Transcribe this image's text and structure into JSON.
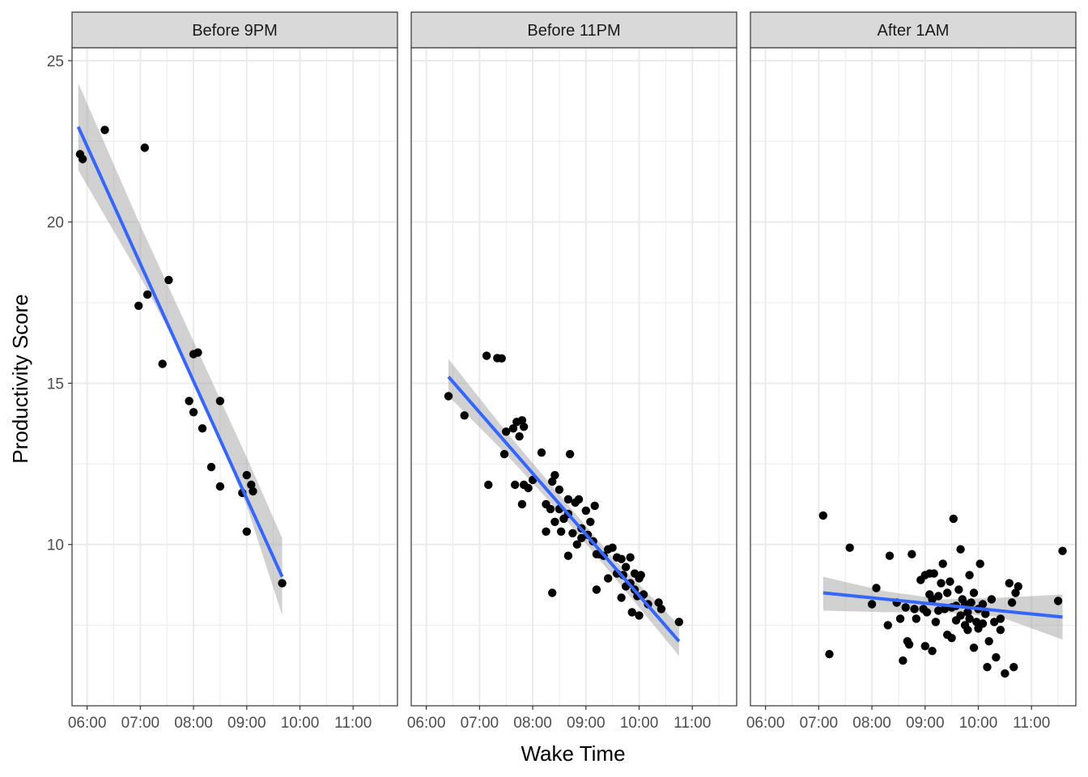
{
  "chart_data": {
    "type": "scatter",
    "xlabel": "Wake Time",
    "ylabel": "Productivity Score",
    "x_ticks": [
      "06:00",
      "07:00",
      "08:00",
      "09:00",
      "10:00",
      "11:00"
    ],
    "y_ticks": [
      10,
      15,
      20,
      25
    ],
    "xlim": [
      "05:43",
      "11:50"
    ],
    "ylim": [
      5.0,
      25.4
    ],
    "grid": true,
    "colors": {
      "points": "#000000",
      "fit_line": "#3366ff",
      "ribbon": "#999999",
      "strip_bg": "#d9d9d9",
      "grid": "#ebebeb"
    },
    "panels": [
      {
        "label": "Before 9PM",
        "fit": {
          "x": [
            "05:50",
            "09:40"
          ],
          "y": [
            22.95,
            9.0
          ]
        },
        "ribbon": {
          "x": [
            "05:50",
            "07:00",
            "08:00",
            "09:00",
            "09:40"
          ],
          "upper": [
            24.3,
            19.9,
            16.3,
            12.7,
            10.2
          ],
          "lower": [
            21.6,
            18.3,
            15.2,
            11.2,
            7.8
          ]
        },
        "points": [
          [
            "05:52",
            22.1
          ],
          [
            "05:55",
            21.95
          ],
          [
            "06:20",
            22.85
          ],
          [
            "07:05",
            22.3
          ],
          [
            "07:08",
            17.75
          ],
          [
            "06:58",
            17.4
          ],
          [
            "07:32",
            18.2
          ],
          [
            "07:25",
            15.6
          ],
          [
            "08:00",
            15.9
          ],
          [
            "08:05",
            15.95
          ],
          [
            "07:55",
            14.45
          ],
          [
            "08:00",
            14.1
          ],
          [
            "08:10",
            13.6
          ],
          [
            "08:30",
            14.45
          ],
          [
            "08:20",
            12.4
          ],
          [
            "08:30",
            11.8
          ],
          [
            "09:00",
            12.15
          ],
          [
            "09:05",
            11.85
          ],
          [
            "08:55",
            11.6
          ],
          [
            "09:07",
            11.65
          ],
          [
            "09:00",
            10.4
          ],
          [
            "09:40",
            8.8
          ]
        ]
      },
      {
        "label": "Before 11PM",
        "fit": {
          "x": [
            "06:25",
            "10:45"
          ],
          "y": [
            15.2,
            7.0
          ]
        },
        "ribbon": {
          "x": [
            "06:25",
            "07:30",
            "08:30",
            "09:30",
            "10:45"
          ],
          "upper": [
            15.75,
            13.5,
            11.55,
            9.6,
            7.5
          ],
          "lower": [
            14.6,
            12.8,
            11.0,
            9.05,
            6.55
          ]
        },
        "points": [
          [
            "06:25",
            14.6
          ],
          [
            "06:43",
            14.0
          ],
          [
            "07:08",
            15.85
          ],
          [
            "07:20",
            15.78
          ],
          [
            "07:25",
            15.77
          ],
          [
            "07:10",
            11.85
          ],
          [
            "07:28",
            12.8
          ],
          [
            "07:30",
            13.5
          ],
          [
            "07:38",
            13.6
          ],
          [
            "07:42",
            13.8
          ],
          [
            "07:48",
            13.85
          ],
          [
            "07:45",
            13.35
          ],
          [
            "07:50",
            13.65
          ],
          [
            "07:40",
            11.85
          ],
          [
            "07:50",
            11.85
          ],
          [
            "07:55",
            11.75
          ],
          [
            "08:00",
            12.0
          ],
          [
            "07:48",
            11.25
          ],
          [
            "08:10",
            12.85
          ],
          [
            "08:15",
            11.25
          ],
          [
            "08:20",
            11.1
          ],
          [
            "08:22",
            11.95
          ],
          [
            "08:25",
            12.15
          ],
          [
            "08:30",
            11.7
          ],
          [
            "08:30",
            11.1
          ],
          [
            "08:35",
            10.8
          ],
          [
            "08:40",
            10.95
          ],
          [
            "08:25",
            10.7
          ],
          [
            "08:32",
            10.4
          ],
          [
            "08:15",
            10.4
          ],
          [
            "08:40",
            11.4
          ],
          [
            "08:48",
            11.3
          ],
          [
            "08:52",
            11.4
          ],
          [
            "08:45",
            10.35
          ],
          [
            "08:50",
            10.0
          ],
          [
            "08:55",
            10.5
          ],
          [
            "09:00",
            11.05
          ],
          [
            "09:05",
            10.7
          ],
          [
            "09:10",
            11.2
          ],
          [
            "09:02",
            10.3
          ],
          [
            "09:08",
            10.1
          ],
          [
            "09:12",
            9.7
          ],
          [
            "09:20",
            9.65
          ],
          [
            "09:25",
            9.85
          ],
          [
            "09:30",
            9.9
          ],
          [
            "09:35",
            9.6
          ],
          [
            "09:40",
            9.55
          ],
          [
            "09:45",
            9.3
          ],
          [
            "09:50",
            9.6
          ],
          [
            "09:55",
            9.1
          ],
          [
            "10:00",
            8.95
          ],
          [
            "10:02",
            9.05
          ],
          [
            "09:42",
            9.05
          ],
          [
            "09:50",
            8.8
          ],
          [
            "09:40",
            8.35
          ],
          [
            "09:25",
            8.95
          ],
          [
            "09:12",
            8.6
          ],
          [
            "08:40",
            9.65
          ],
          [
            "09:55",
            8.6
          ],
          [
            "10:05",
            8.45
          ],
          [
            "09:52",
            7.9
          ],
          [
            "10:00",
            7.8
          ],
          [
            "10:22",
            8.2
          ],
          [
            "10:25",
            8.0
          ],
          [
            "10:45",
            7.6
          ],
          [
            "08:22",
            8.5
          ],
          [
            "08:42",
            12.8
          ],
          [
            "08:55",
            10.2
          ],
          [
            "09:15",
            9.7
          ],
          [
            "09:35",
            9.1
          ],
          [
            "09:45",
            8.7
          ],
          [
            "09:58",
            8.4
          ],
          [
            "10:10",
            8.15
          ]
        ]
      },
      {
        "label": "After 1AM",
        "fit": {
          "x": [
            "07:05",
            "11:35"
          ],
          "y": [
            8.5,
            7.75
          ]
        },
        "ribbon": {
          "x": [
            "07:05",
            "08:15",
            "09:20",
            "10:25",
            "11:35"
          ],
          "upper": [
            9.0,
            8.55,
            8.3,
            8.35,
            8.45
          ],
          "lower": [
            7.95,
            7.9,
            7.9,
            7.75,
            7.05
          ]
        },
        "points": [
          [
            "07:05",
            10.9
          ],
          [
            "07:12",
            6.6
          ],
          [
            "07:35",
            9.9
          ],
          [
            "08:00",
            8.15
          ],
          [
            "08:05",
            8.65
          ],
          [
            "08:18",
            7.5
          ],
          [
            "08:20",
            9.65
          ],
          [
            "08:28",
            8.2
          ],
          [
            "08:32",
            7.7
          ],
          [
            "08:35",
            6.4
          ],
          [
            "08:40",
            7.0
          ],
          [
            "08:45",
            9.7
          ],
          [
            "08:48",
            8.0
          ],
          [
            "08:55",
            8.9
          ],
          [
            "09:00",
            9.05
          ],
          [
            "09:05",
            9.1
          ],
          [
            "09:10",
            9.1
          ],
          [
            "08:58",
            8.0
          ],
          [
            "09:02",
            7.9
          ],
          [
            "09:08",
            8.3
          ],
          [
            "09:12",
            7.6
          ],
          [
            "09:15",
            8.4
          ],
          [
            "09:18",
            8.8
          ],
          [
            "09:20",
            9.4
          ],
          [
            "09:22",
            8.0
          ],
          [
            "09:25",
            7.2
          ],
          [
            "09:28",
            8.85
          ],
          [
            "09:30",
            7.1
          ],
          [
            "09:32",
            10.8
          ],
          [
            "09:35",
            8.1
          ],
          [
            "09:38",
            8.6
          ],
          [
            "09:40",
            9.85
          ],
          [
            "09:42",
            8.3
          ],
          [
            "09:45",
            7.5
          ],
          [
            "09:48",
            7.9
          ],
          [
            "09:50",
            9.05
          ],
          [
            "09:52",
            8.2
          ],
          [
            "09:55",
            6.8
          ],
          [
            "09:58",
            7.6
          ],
          [
            "10:00",
            8.0
          ],
          [
            "10:02",
            9.4
          ],
          [
            "10:05",
            8.15
          ],
          [
            "10:08",
            7.85
          ],
          [
            "10:10",
            6.2
          ],
          [
            "10:12",
            7.0
          ],
          [
            "10:15",
            8.3
          ],
          [
            "10:18",
            7.6
          ],
          [
            "10:20",
            6.5
          ],
          [
            "10:25",
            7.7
          ],
          [
            "10:30",
            6.0
          ],
          [
            "10:35",
            8.8
          ],
          [
            "10:38",
            8.2
          ],
          [
            "10:40",
            6.2
          ],
          [
            "10:42",
            8.5
          ],
          [
            "10:45",
            8.7
          ],
          [
            "11:30",
            8.25
          ],
          [
            "11:35",
            9.8
          ],
          [
            "09:00",
            6.85
          ],
          [
            "09:08",
            6.7
          ],
          [
            "08:50",
            7.7
          ],
          [
            "09:35",
            7.65
          ],
          [
            "09:50",
            7.7
          ],
          [
            "09:25",
            8.5
          ],
          [
            "09:15",
            7.95
          ],
          [
            "08:42",
            6.9
          ],
          [
            "10:00",
            7.4
          ],
          [
            "09:45",
            8.15
          ],
          [
            "09:05",
            8.45
          ],
          [
            "10:25",
            7.35
          ],
          [
            "09:55",
            8.5
          ],
          [
            "08:38",
            8.05
          ],
          [
            "09:40",
            7.8
          ],
          [
            "10:05",
            7.55
          ],
          [
            "09:30",
            8.05
          ],
          [
            "09:48",
            7.35
          ]
        ]
      }
    ]
  }
}
